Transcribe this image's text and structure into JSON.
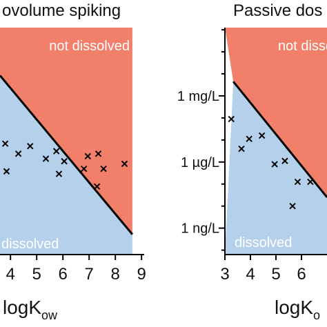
{
  "colors": {
    "not_dissolved": "#f27f6a",
    "dissolved": "#b5d0ea",
    "boundary": "#000000",
    "marker": "#000000",
    "axis": "#000000"
  },
  "chart_data": [
    {
      "type": "scatter",
      "title": "ovolume spiking",
      "xlabel": {
        "main": "logK",
        "sub": "ow"
      },
      "x_ticks": [
        "4",
        "5",
        "6",
        "7",
        "8",
        "9"
      ],
      "xlim": [
        3.6,
        9.1
      ],
      "ylim": [
        -1.5,
        3.0
      ],
      "regions": {
        "upper": "not dissolved",
        "lower": "dissolved"
      },
      "boundary": {
        "x": [
          3.6,
          8.65
        ],
        "y": [
          2.05,
          -1.1
        ]
      },
      "region_x_max": 8.65,
      "marker": "x",
      "points": [
        {
          "x": 3.8,
          "y": 0.7
        },
        {
          "x": 3.85,
          "y": 0.15
        },
        {
          "x": 4.3,
          "y": 0.5
        },
        {
          "x": 4.75,
          "y": 0.65
        },
        {
          "x": 5.35,
          "y": 0.4
        },
        {
          "x": 5.75,
          "y": 0.55
        },
        {
          "x": 5.85,
          "y": 0.1
        },
        {
          "x": 6.05,
          "y": 0.35
        },
        {
          "x": 6.8,
          "y": 0.2
        },
        {
          "x": 6.95,
          "y": 0.45
        },
        {
          "x": 7.3,
          "y": -0.15
        },
        {
          "x": 7.35,
          "y": 0.5
        },
        {
          "x": 7.55,
          "y": 0.2
        },
        {
          "x": 8.35,
          "y": 0.3
        }
      ]
    },
    {
      "type": "scatter",
      "title": "Passive dos",
      "xlabel": {
        "main": "logK",
        "sub": "o"
      },
      "x_ticks": [
        "3",
        "4",
        "5",
        "6"
      ],
      "y_ticks": [
        "1 mg/L",
        "1 µg/L",
        "1 ng/L"
      ],
      "y_tick_values": [
        3,
        0,
        -3
      ],
      "log_scale_y": true,
      "xlim": [
        3,
        7
      ],
      "ylim": [
        -4.2,
        6.1
      ],
      "regions": {
        "upper": "not dissolved",
        "lower": "dissolved"
      },
      "boundary": {
        "x": [
          3.33,
          7
        ],
        "y": [
          3.65,
          -1.6
        ]
      },
      "marker": "x",
      "points": [
        {
          "x": 3.25,
          "y": 1.95
        },
        {
          "x": 3.65,
          "y": 0.6
        },
        {
          "x": 3.95,
          "y": 1.05
        },
        {
          "x": 4.45,
          "y": 1.2
        },
        {
          "x": 4.95,
          "y": -0.1
        },
        {
          "x": 5.35,
          "y": 0.05
        },
        {
          "x": 5.65,
          "y": -2.0
        },
        {
          "x": 5.85,
          "y": -0.9
        },
        {
          "x": 6.35,
          "y": -0.9
        }
      ]
    }
  ]
}
